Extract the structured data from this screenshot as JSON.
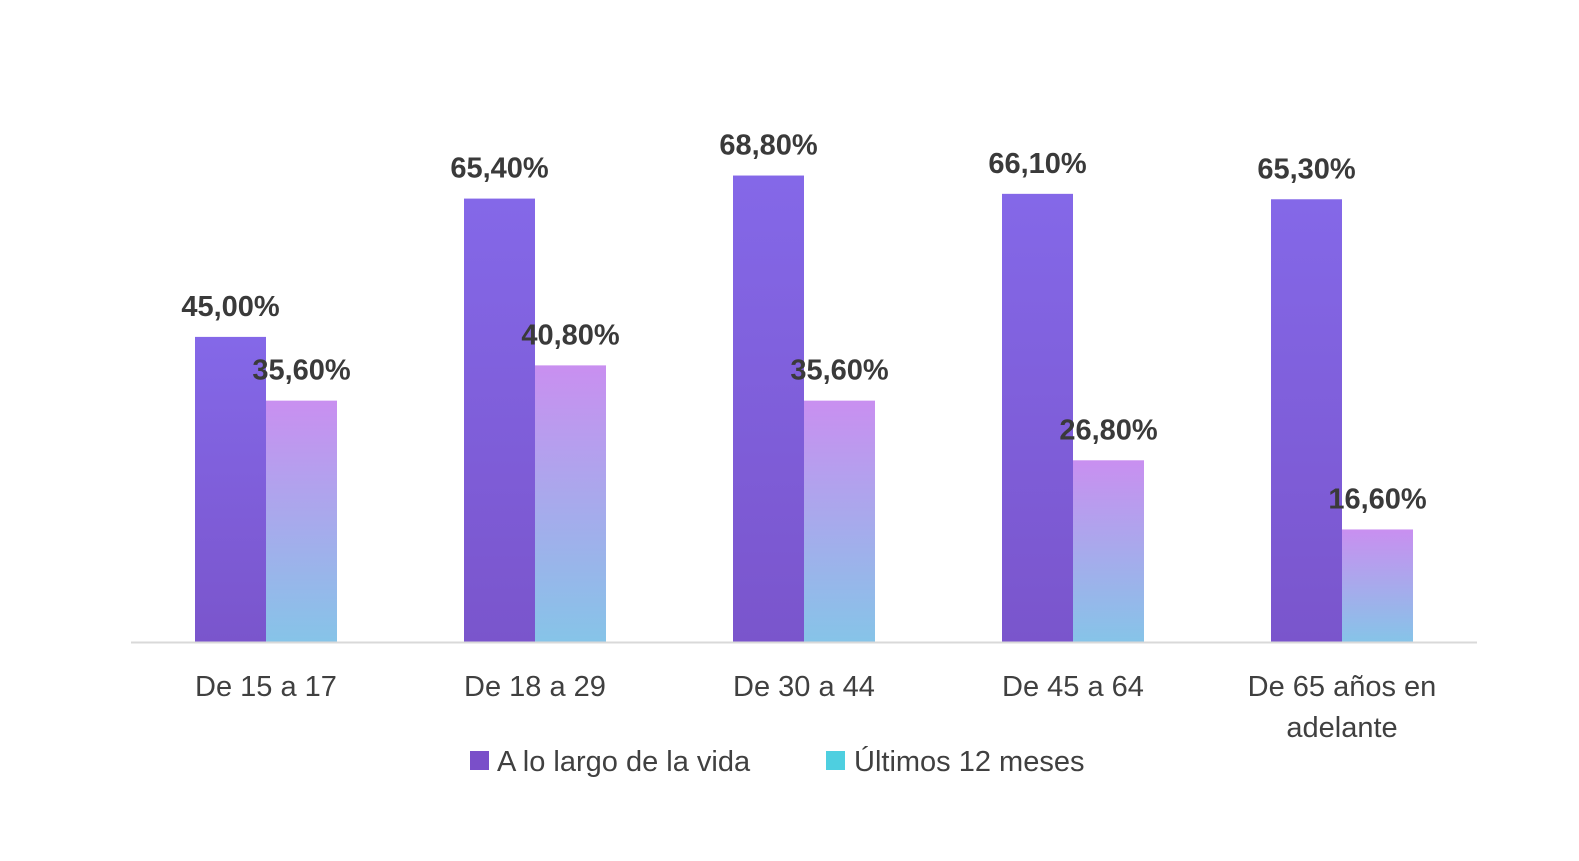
{
  "chart_data": {
    "type": "bar",
    "categories": [
      [
        "De 15 a 17"
      ],
      [
        "De 18 a 29"
      ],
      [
        "De 30 a 44"
      ],
      [
        "De 45 a 64"
      ],
      [
        "De 65 años en",
        "adelante"
      ]
    ],
    "series": [
      {
        "name": "A lo largo de la vida",
        "values": [
          45.0,
          65.4,
          68.8,
          66.1,
          65.3
        ],
        "labels": [
          "45,00%",
          "65,40%",
          "68,80%",
          "66,10%",
          "65,30%"
        ],
        "color_top": "#8468e8",
        "color_bottom": "#7a55cc",
        "legend_color": "#7a4fc9"
      },
      {
        "name": "Últimos 12 meses",
        "values": [
          35.6,
          40.8,
          35.6,
          26.8,
          16.6
        ],
        "labels": [
          "35,60%",
          "40,80%",
          "35,60%",
          "26,80%",
          "16,60%"
        ],
        "color_top": "#c98ff0",
        "color_bottom": "#86c4e8",
        "legend_color": "#4ecfe0"
      }
    ],
    "ylim": [
      0,
      100
    ],
    "grid": false,
    "legend_position": "bottom"
  }
}
